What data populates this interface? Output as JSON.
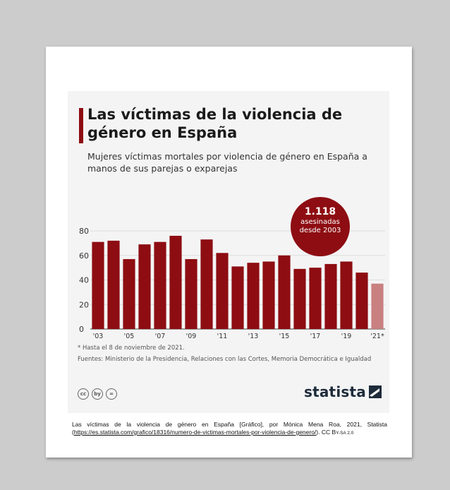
{
  "infographic": {
    "title": "Las víctimas de la violencia de género en España",
    "subtitle": "Mujeres víctimas mortales por violencia de género en España a manos de sus parejas o exparejas",
    "badge": {
      "number": "1.118",
      "line1": "asesinadas",
      "line2": "desde 2003"
    },
    "footnote": "* Hasta el 8 de noviembre de 2021.",
    "sources": "Fuentes: Ministerio de la Presidencia, Relaciones con las Cortes, Memoria Democrática e Igualdad",
    "cc_icons": [
      "cc",
      "by",
      "="
    ],
    "brand": "statista",
    "colors": {
      "bar": "#8d0d12",
      "bar_partial": "#c98080",
      "accent": "#8d0d12"
    }
  },
  "chart_data": {
    "type": "bar",
    "categories": [
      "2003",
      "2004",
      "2005",
      "2006",
      "2007",
      "2008",
      "2009",
      "2010",
      "2011",
      "2012",
      "2013",
      "2014",
      "2015",
      "2016",
      "2017",
      "2018",
      "2019",
      "2020",
      "2021"
    ],
    "values": [
      71,
      72,
      57,
      69,
      71,
      76,
      57,
      73,
      62,
      51,
      54,
      55,
      60,
      49,
      50,
      53,
      55,
      46,
      37
    ],
    "partial_last": true,
    "x_tick_labels": [
      "'03",
      "'05",
      "'07",
      "'09",
      "'11",
      "'13",
      "'15",
      "'17",
      "'19",
      "'21*"
    ],
    "y_ticks": [
      0,
      20,
      40,
      60,
      80
    ],
    "ylim": [
      0,
      80
    ],
    "grid": true,
    "title": "Las víctimas de la violencia de género en España",
    "xlabel": "",
    "ylabel": ""
  },
  "caption": {
    "text_before": "Las víctimas de la violencia de género en España [Gráfico], por Mónica Mena Roa, 2021, Statista (",
    "link": "https://es.statista.com/grafico/18316/numero-de-victimas-mortales-por-violencia-de-genero/",
    "text_after": "). CC B",
    "license_smallcaps": "Y-SA 2.0"
  }
}
